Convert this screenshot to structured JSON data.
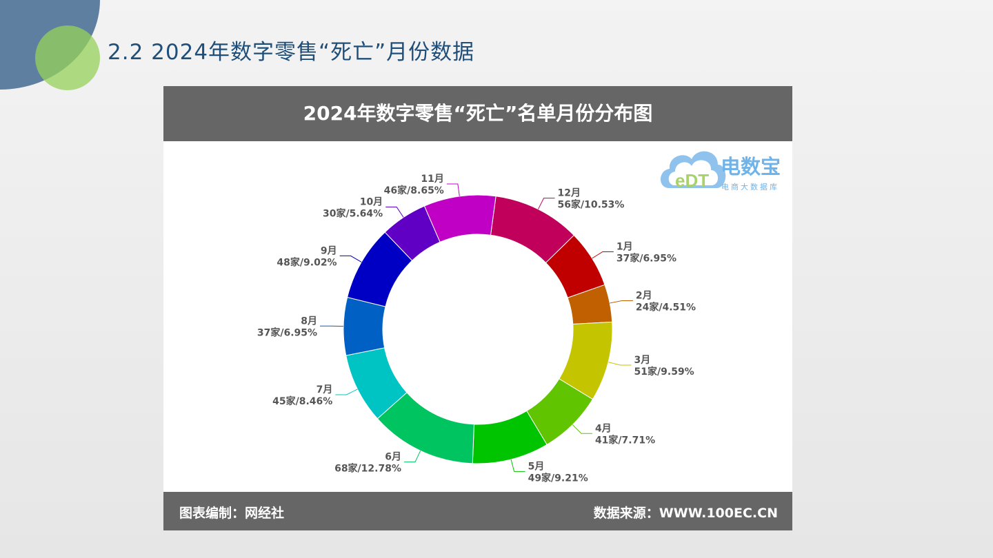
{
  "slide": {
    "title": "2.2 2024年数字零售“死亡”月份数据"
  },
  "logo": {
    "name": "电数宝",
    "tagline": "电商大数据库",
    "mark": "eDT"
  },
  "card": {
    "footer_left": "图表编制：网经社",
    "footer_right": "数据来源：WWW.100EC.CN"
  },
  "chart_data": {
    "type": "pie",
    "variant": "donut",
    "title": "2024年数字零售“死亡”名单月份分布图",
    "unit": "家",
    "slices": [
      {
        "label": "12月",
        "value": 56,
        "percent": "10.53%",
        "color": "#c0005a"
      },
      {
        "label": "1月",
        "value": 37,
        "percent": "6.95%",
        "color": "#c00000"
      },
      {
        "label": "2月",
        "value": 24,
        "percent": "4.51%",
        "color": "#c06000"
      },
      {
        "label": "3月",
        "value": 51,
        "percent": "9.59%",
        "color": "#c4c400"
      },
      {
        "label": "4月",
        "value": 41,
        "percent": "7.71%",
        "color": "#60c400"
      },
      {
        "label": "5月",
        "value": 49,
        "percent": "9.21%",
        "color": "#00c400"
      },
      {
        "label": "6月",
        "value": 68,
        "percent": "12.78%",
        "color": "#00c460"
      },
      {
        "label": "7月",
        "value": 45,
        "percent": "8.46%",
        "color": "#00c4c4"
      },
      {
        "label": "8月",
        "value": 37,
        "percent": "6.95%",
        "color": "#0060c4"
      },
      {
        "label": "9月",
        "value": 48,
        "percent": "9.02%",
        "color": "#0000c4"
      },
      {
        "label": "10月",
        "value": 30,
        "percent": "5.64%",
        "color": "#6000c4"
      },
      {
        "label": "11月",
        "value": 46,
        "percent": "8.65%",
        "color": "#c000c4"
      }
    ]
  }
}
